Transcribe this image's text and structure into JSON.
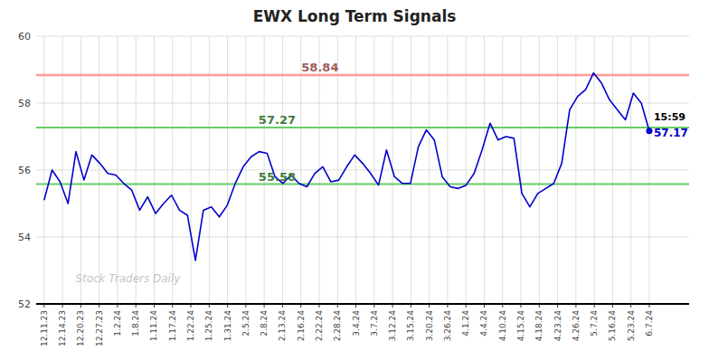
{
  "chart_data": {
    "type": "line",
    "title": "EWX Long Term Signals",
    "color": "#0000cc",
    "grid": true,
    "ylim": [
      52,
      60
    ],
    "yticks": [
      52,
      54,
      56,
      58,
      60
    ],
    "xlim": [
      -1,
      81
    ],
    "xticks": [
      {
        "value": 0,
        "label": "12.11.23"
      },
      {
        "value": 2.30303,
        "label": "12.14.23"
      },
      {
        "value": 4.60606,
        "label": "12.20.23"
      },
      {
        "value": 6.90909,
        "label": "12.27.23"
      },
      {
        "value": 9.21212,
        "label": "1.2.24"
      },
      {
        "value": 11.51515,
        "label": "1.8.24"
      },
      {
        "value": 13.81818,
        "label": "1.11.24"
      },
      {
        "value": 16.12121,
        "label": "1.17.24"
      },
      {
        "value": 18.42424,
        "label": "1.22.24"
      },
      {
        "value": 20.72727,
        "label": "1.25.24"
      },
      {
        "value": 23.0303,
        "label": "1.31.24"
      },
      {
        "value": 25.33333,
        "label": "2.5.24"
      },
      {
        "value": 27.63636,
        "label": "2.8.24"
      },
      {
        "value": 29.93939,
        "label": "2.13.24"
      },
      {
        "value": 32.24242,
        "label": "2.16.24"
      },
      {
        "value": 34.54545,
        "label": "2.22.24"
      },
      {
        "value": 36.84848,
        "label": "2.28.24"
      },
      {
        "value": 39.15152,
        "label": "3.4.24"
      },
      {
        "value": 41.45455,
        "label": "3.7.24"
      },
      {
        "value": 43.75758,
        "label": "3.12.24"
      },
      {
        "value": 46.06061,
        "label": "3.15.24"
      },
      {
        "value": 48.36364,
        "label": "3.20.24"
      },
      {
        "value": 50.66667,
        "label": "3.26.24"
      },
      {
        "value": 52.9697,
        "label": "4.1.24"
      },
      {
        "value": 55.27273,
        "label": "4.4.24"
      },
      {
        "value": 57.57576,
        "label": "4.10.24"
      },
      {
        "value": 59.87879,
        "label": "4.15.24"
      },
      {
        "value": 62.18182,
        "label": "4.18.24"
      },
      {
        "value": 64.48485,
        "label": "4.23.24"
      },
      {
        "value": 66.78788,
        "label": "4.26.24"
      },
      {
        "value": 69.09091,
        "label": "5.7.24"
      },
      {
        "value": 71.39394,
        "label": "5.16.24"
      },
      {
        "value": 73.69697,
        "label": "5.23.24"
      },
      {
        "value": 76,
        "label": "6.7.24"
      }
    ],
    "values": [
      55.1,
      56.0,
      55.65,
      55.0,
      56.55,
      55.7,
      56.45,
      56.2,
      55.9,
      55.85,
      55.6,
      55.4,
      54.8,
      55.2,
      54.7,
      55.0,
      55.25,
      54.8,
      54.65,
      53.3,
      54.8,
      54.9,
      54.6,
      54.95,
      55.6,
      56.1,
      56.4,
      56.55,
      56.5,
      55.8,
      55.6,
      55.85,
      55.6,
      55.5,
      55.9,
      56.1,
      55.65,
      55.7,
      56.1,
      56.45,
      56.2,
      55.9,
      55.55,
      56.6,
      55.8,
      55.6,
      55.6,
      56.7,
      57.2,
      56.9,
      55.8,
      55.5,
      55.45,
      55.55,
      55.9,
      56.6,
      57.4,
      56.9,
      57.0,
      56.95,
      55.3,
      54.9,
      55.3,
      55.45,
      55.6,
      56.2,
      57.8,
      58.2,
      58.4,
      58.9,
      58.6,
      58.1,
      57.8,
      57.5,
      58.3,
      58.0,
      57.17
    ],
    "reference_lines": [
      {
        "value": 58.84,
        "label": "58.84",
        "color": "#ff9999"
      },
      {
        "value": 57.27,
        "label": "57.27",
        "color": "#66cc66"
      },
      {
        "value": 55.58,
        "label": "55.58",
        "color": "#66cc66"
      }
    ],
    "annotations": [
      {
        "text": "15:59"
      },
      {
        "text": "57.17",
        "color": "#0000cc"
      }
    ],
    "watermark": "Stock Traders Daily"
  }
}
